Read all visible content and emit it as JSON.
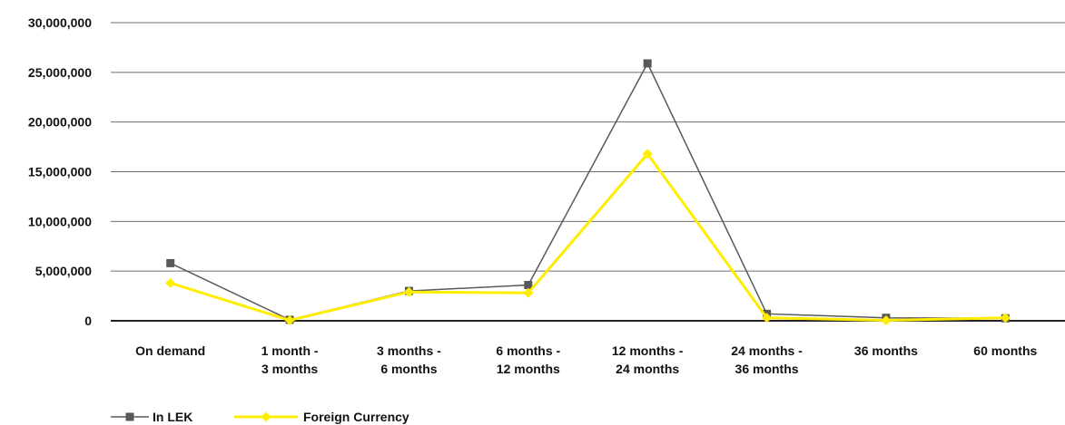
{
  "chart_data": {
    "type": "line",
    "categories": [
      [
        "On demand"
      ],
      [
        "1 month -",
        "3 months"
      ],
      [
        "3 months -",
        "6 months"
      ],
      [
        "6 months -",
        "12 months"
      ],
      [
        "12 months -",
        "24 months"
      ],
      [
        "24 months -",
        "36 months"
      ],
      [
        "36 months"
      ],
      [
        "60 months"
      ]
    ],
    "series": [
      {
        "name": "In LEK",
        "color": "#595959",
        "marker": "square",
        "values": [
          5800000,
          100000,
          3000000,
          3600000,
          25900000,
          700000,
          300000,
          250000
        ]
      },
      {
        "name": "Foreign Currency",
        "color": "#FFED00",
        "marker": "diamond",
        "values": [
          3800000,
          50000,
          2900000,
          2800000,
          16800000,
          300000,
          50000,
          300000
        ]
      }
    ],
    "ylim": [
      0,
      30000000
    ],
    "yticks": [
      0,
      5000000,
      10000000,
      15000000,
      20000000,
      25000000,
      30000000
    ],
    "ytick_labels": [
      "0",
      "5,000,000",
      "10,000,000",
      "15,000,000",
      "20,000,000",
      "25,000,000",
      "30,000,000"
    ],
    "grid": true,
    "legend_position": "bottom-left"
  }
}
